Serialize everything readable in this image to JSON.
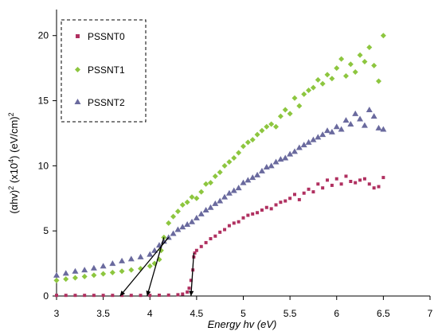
{
  "chart_data": {
    "type": "scatter",
    "xlabel": "Energy hv (eV)",
    "ylabel_parts": {
      "base": "(αhv)",
      "sup1": "2",
      "mid": " (x10",
      "sup2": "4",
      "tail": ") (eV/cm)",
      "sup3": "2"
    },
    "xlim": [
      3,
      7
    ],
    "ylim": [
      0,
      22
    ],
    "xticks": [
      "3",
      "3.5",
      "4",
      "4.5",
      "5",
      "5.5",
      "6",
      "6.5",
      "7"
    ],
    "yticks": [
      "0",
      "5",
      "10",
      "15",
      "20"
    ],
    "grid": false,
    "legend_position": "top-left",
    "series": [
      {
        "name": "PSSNT0",
        "marker": "square",
        "color": "#b03060",
        "x": [
          3.0,
          3.1,
          3.2,
          3.3,
          3.4,
          3.5,
          3.6,
          3.7,
          3.8,
          3.9,
          4.0,
          4.1,
          4.2,
          4.3,
          4.35,
          4.4,
          4.42,
          4.44,
          4.46,
          4.47,
          4.48,
          4.5,
          4.55,
          4.6,
          4.65,
          4.7,
          4.75,
          4.8,
          4.85,
          4.9,
          4.95,
          5.0,
          5.05,
          5.1,
          5.15,
          5.2,
          5.25,
          5.3,
          5.35,
          5.4,
          5.45,
          5.5,
          5.55,
          5.6,
          5.65,
          5.7,
          5.75,
          5.8,
          5.85,
          5.9,
          5.95,
          6.0,
          6.05,
          6.1,
          6.15,
          6.2,
          6.25,
          6.3,
          6.35,
          6.4,
          6.45,
          6.5
        ],
        "y": [
          0.05,
          0.05,
          0.05,
          0.05,
          0.05,
          0.05,
          0.05,
          0.05,
          0.05,
          0.05,
          0.05,
          0.06,
          0.07,
          0.1,
          0.15,
          0.3,
          0.6,
          1.2,
          2.0,
          3.0,
          3.3,
          3.5,
          3.8,
          4.1,
          4.4,
          4.6,
          4.9,
          5.1,
          5.4,
          5.6,
          5.7,
          6.0,
          6.2,
          6.3,
          6.4,
          6.6,
          6.8,
          6.7,
          7.0,
          7.2,
          7.3,
          7.5,
          7.8,
          7.4,
          7.9,
          8.2,
          8.0,
          8.6,
          8.3,
          8.9,
          8.5,
          9.0,
          8.6,
          9.2,
          8.8,
          8.7,
          8.9,
          9.0,
          8.6,
          8.3,
          8.4,
          9.1
        ]
      },
      {
        "name": "PSSNT1",
        "marker": "diamond",
        "color": "#8dc63f",
        "x": [
          3.0,
          3.1,
          3.2,
          3.3,
          3.4,
          3.5,
          3.6,
          3.7,
          3.8,
          3.9,
          4.0,
          4.05,
          4.1,
          4.12,
          4.15,
          4.2,
          4.25,
          4.3,
          4.35,
          4.4,
          4.45,
          4.5,
          4.55,
          4.6,
          4.65,
          4.7,
          4.75,
          4.8,
          4.85,
          4.9,
          4.95,
          5.0,
          5.05,
          5.1,
          5.15,
          5.2,
          5.25,
          5.3,
          5.35,
          5.4,
          5.45,
          5.5,
          5.55,
          5.6,
          5.65,
          5.7,
          5.75,
          5.8,
          5.85,
          5.9,
          5.95,
          6.0,
          6.05,
          6.1,
          6.15,
          6.2,
          6.25,
          6.3,
          6.35,
          6.4,
          6.45,
          6.5
        ],
        "y": [
          1.2,
          1.3,
          1.4,
          1.5,
          1.6,
          1.7,
          1.8,
          1.9,
          2.0,
          2.1,
          2.3,
          2.5,
          2.8,
          3.5,
          4.5,
          5.6,
          6.1,
          6.5,
          7.0,
          7.2,
          7.6,
          7.5,
          8.0,
          8.6,
          8.7,
          9.2,
          9.5,
          10.0,
          10.3,
          10.6,
          11.0,
          11.5,
          11.8,
          12.0,
          12.4,
          12.7,
          13.0,
          13.2,
          13.0,
          13.8,
          14.3,
          14.0,
          15.2,
          14.6,
          15.5,
          15.8,
          16.0,
          16.6,
          16.3,
          17.0,
          16.7,
          17.5,
          18.2,
          16.9,
          17.8,
          17.2,
          18.5,
          18.0,
          19.1,
          17.7,
          16.5,
          20.0
        ]
      },
      {
        "name": "PSSNT2",
        "marker": "triangle",
        "color": "#6a6a9e",
        "x": [
          3.0,
          3.1,
          3.2,
          3.3,
          3.4,
          3.5,
          3.6,
          3.7,
          3.8,
          3.9,
          4.0,
          4.05,
          4.1,
          4.15,
          4.2,
          4.25,
          4.3,
          4.35,
          4.4,
          4.45,
          4.5,
          4.55,
          4.6,
          4.65,
          4.7,
          4.75,
          4.8,
          4.85,
          4.9,
          4.95,
          5.0,
          5.05,
          5.1,
          5.15,
          5.2,
          5.25,
          5.3,
          5.35,
          5.4,
          5.45,
          5.5,
          5.55,
          5.6,
          5.65,
          5.7,
          5.75,
          5.8,
          5.85,
          5.9,
          5.95,
          6.0,
          6.05,
          6.1,
          6.15,
          6.2,
          6.25,
          6.3,
          6.35,
          6.4,
          6.45,
          6.5
        ],
        "y": [
          1.6,
          1.75,
          1.9,
          2.0,
          2.15,
          2.3,
          2.5,
          2.7,
          2.85,
          3.0,
          3.2,
          3.5,
          3.9,
          4.2,
          4.5,
          4.8,
          5.1,
          5.3,
          5.5,
          5.7,
          6.0,
          6.3,
          6.6,
          6.8,
          7.1,
          7.3,
          7.6,
          7.9,
          8.1,
          8.3,
          8.7,
          8.9,
          9.1,
          9.3,
          9.6,
          9.9,
          10.0,
          10.3,
          10.5,
          10.6,
          10.9,
          11.1,
          11.4,
          11.6,
          11.8,
          12.0,
          12.2,
          12.4,
          12.7,
          12.6,
          13.0,
          12.8,
          13.5,
          13.2,
          14.0,
          13.6,
          13.1,
          14.3,
          13.8,
          12.9,
          12.8
        ]
      }
    ],
    "annotations": {
      "tangent_lines": [
        {
          "series": "PSSNT0",
          "from": [
            4.47,
            3.3
          ],
          "to": [
            4.44,
            0
          ]
        },
        {
          "series": "PSSNT1",
          "from": [
            4.15,
            4.5
          ],
          "to": [
            3.97,
            0
          ]
        },
        {
          "series": "PSSNT2",
          "from": [
            4.2,
            4.5
          ],
          "to": [
            3.68,
            0
          ]
        }
      ]
    }
  }
}
